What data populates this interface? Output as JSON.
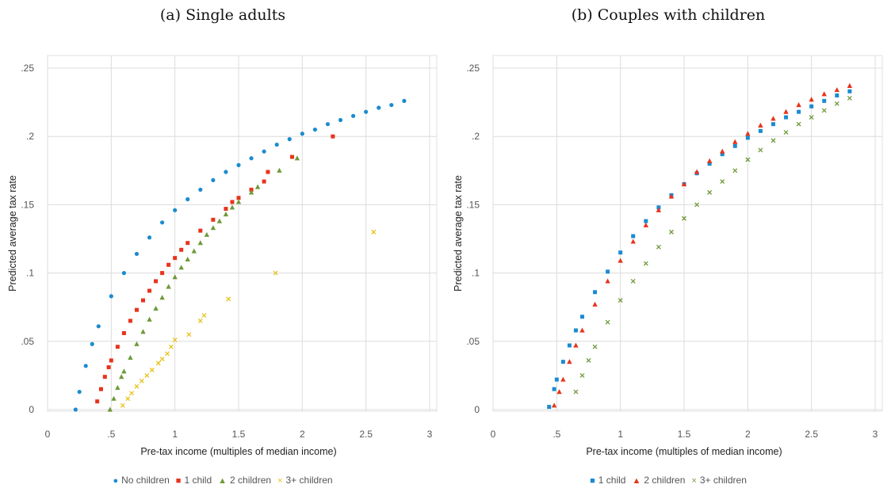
{
  "chart_data": [
    {
      "type": "scatter",
      "title": "(a) Single adults",
      "xlabel": "Pre-tax income (multiples of median income)",
      "ylabel": "Predicted average tax rate",
      "xlim": [
        0,
        3
      ],
      "ylim": [
        0,
        0.25
      ],
      "x_ticks": [
        "0",
        ".5",
        "1",
        "1.5",
        "2",
        "2.5",
        "3"
      ],
      "y_ticks": [
        "0",
        ".05",
        ".1",
        ".15",
        ".2",
        ".25"
      ],
      "grid": true,
      "legend_position": "bottom",
      "series": [
        {
          "name": "No children",
          "color": "#1b8bd0",
          "marker": "circle",
          "x": [
            0.22,
            0.25,
            0.3,
            0.35,
            0.4,
            0.5,
            0.6,
            0.7,
            0.8,
            0.9,
            1.0,
            1.1,
            1.2,
            1.3,
            1.4,
            1.5,
            1.6,
            1.7,
            1.8,
            1.9,
            2.0,
            2.1,
            2.2,
            2.3,
            2.4,
            2.5,
            2.6,
            2.7,
            2.8
          ],
          "y": [
            0.0,
            0.013,
            0.032,
            0.048,
            0.061,
            0.083,
            0.1,
            0.114,
            0.126,
            0.137,
            0.146,
            0.154,
            0.161,
            0.168,
            0.174,
            0.179,
            0.184,
            0.189,
            0.194,
            0.198,
            0.202,
            0.205,
            0.209,
            0.212,
            0.215,
            0.218,
            0.221,
            0.223,
            0.226
          ]
        },
        {
          "name": "1 child",
          "color": "#e8331c",
          "marker": "square",
          "x": [
            0.39,
            0.42,
            0.45,
            0.48,
            0.5,
            0.55,
            0.6,
            0.65,
            0.7,
            0.75,
            0.8,
            0.85,
            0.9,
            0.95,
            1.0,
            1.05,
            1.1,
            1.2,
            1.3,
            1.4,
            1.45,
            1.5,
            1.6,
            1.7,
            1.73,
            1.92,
            2.24
          ],
          "y": [
            0.006,
            0.015,
            0.024,
            0.031,
            0.036,
            0.046,
            0.056,
            0.065,
            0.073,
            0.08,
            0.087,
            0.094,
            0.1,
            0.106,
            0.111,
            0.117,
            0.122,
            0.131,
            0.139,
            0.147,
            0.152,
            0.155,
            0.161,
            0.167,
            0.174,
            0.185,
            0.2
          ]
        },
        {
          "name": "2 children",
          "color": "#6e9a3a",
          "marker": "triangle",
          "x": [
            0.49,
            0.52,
            0.55,
            0.58,
            0.6,
            0.65,
            0.7,
            0.75,
            0.8,
            0.85,
            0.9,
            0.95,
            1.0,
            1.05,
            1.1,
            1.15,
            1.2,
            1.25,
            1.3,
            1.35,
            1.4,
            1.45,
            1.5,
            1.6,
            1.65,
            1.82,
            1.96
          ],
          "y": [
            0.0,
            0.008,
            0.016,
            0.024,
            0.028,
            0.038,
            0.048,
            0.057,
            0.066,
            0.074,
            0.082,
            0.09,
            0.097,
            0.104,
            0.11,
            0.116,
            0.122,
            0.128,
            0.133,
            0.138,
            0.143,
            0.148,
            0.152,
            0.159,
            0.163,
            0.175,
            0.184
          ]
        },
        {
          "name": "3+ children",
          "color": "#e8c11a",
          "marker": "x",
          "x": [
            0.59,
            0.63,
            0.66,
            0.7,
            0.74,
            0.78,
            0.82,
            0.87,
            0.9,
            0.94,
            0.97,
            1.0,
            1.11,
            1.2,
            1.23,
            1.42,
            1.79,
            2.56
          ],
          "y": [
            0.003,
            0.008,
            0.012,
            0.017,
            0.021,
            0.025,
            0.029,
            0.034,
            0.037,
            0.041,
            0.046,
            0.051,
            0.055,
            0.065,
            0.069,
            0.081,
            0.1,
            0.13
          ]
        }
      ]
    },
    {
      "type": "scatter",
      "title": "(b) Couples with children",
      "xlabel": "Pre-tax income (multiples of median income)",
      "ylabel": "Predicted average tax rate",
      "xlim": [
        0,
        3
      ],
      "ylim": [
        0,
        0.25
      ],
      "x_ticks": [
        "0",
        ".5",
        "1",
        "1.5",
        "2",
        "2.5",
        "3"
      ],
      "y_ticks": [
        "0",
        ".05",
        ".1",
        ".15",
        ".2",
        ".25"
      ],
      "grid": true,
      "legend_position": "bottom",
      "series": [
        {
          "name": "1 child",
          "color": "#1b8bd0",
          "marker": "square",
          "x": [
            0.44,
            0.48,
            0.5,
            0.55,
            0.6,
            0.65,
            0.7,
            0.8,
            0.9,
            1.0,
            1.1,
            1.2,
            1.3,
            1.4,
            1.5,
            1.6,
            1.7,
            1.8,
            1.9,
            2.0,
            2.1,
            2.2,
            2.3,
            2.4,
            2.5,
            2.6,
            2.7,
            2.8
          ],
          "y": [
            0.002,
            0.015,
            0.022,
            0.035,
            0.047,
            0.058,
            0.068,
            0.086,
            0.101,
            0.115,
            0.127,
            0.138,
            0.148,
            0.157,
            0.165,
            0.173,
            0.18,
            0.187,
            0.193,
            0.199,
            0.204,
            0.209,
            0.214,
            0.218,
            0.222,
            0.226,
            0.23,
            0.233
          ]
        },
        {
          "name": "2 children",
          "color": "#e8331c",
          "marker": "triangle",
          "x": [
            0.48,
            0.52,
            0.55,
            0.6,
            0.65,
            0.7,
            0.8,
            0.9,
            1.0,
            1.1,
            1.2,
            1.3,
            1.4,
            1.5,
            1.6,
            1.7,
            1.8,
            1.9,
            2.0,
            2.1,
            2.2,
            2.3,
            2.4,
            2.5,
            2.6,
            2.7,
            2.8
          ],
          "y": [
            0.003,
            0.013,
            0.022,
            0.035,
            0.047,
            0.058,
            0.077,
            0.094,
            0.109,
            0.123,
            0.135,
            0.146,
            0.156,
            0.165,
            0.174,
            0.182,
            0.189,
            0.196,
            0.202,
            0.208,
            0.213,
            0.218,
            0.223,
            0.227,
            0.231,
            0.234,
            0.237
          ]
        },
        {
          "name": "3+ children",
          "color": "#6e9a3a",
          "marker": "x",
          "x": [
            0.65,
            0.7,
            0.75,
            0.8,
            0.9,
            1.0,
            1.1,
            1.2,
            1.3,
            1.4,
            1.5,
            1.6,
            1.7,
            1.8,
            1.9,
            2.0,
            2.1,
            2.2,
            2.3,
            2.4,
            2.5,
            2.6,
            2.7,
            2.8
          ],
          "y": [
            0.013,
            0.025,
            0.036,
            0.046,
            0.064,
            0.08,
            0.094,
            0.107,
            0.119,
            0.13,
            0.14,
            0.15,
            0.159,
            0.167,
            0.175,
            0.183,
            0.19,
            0.197,
            0.203,
            0.209,
            0.214,
            0.219,
            0.224,
            0.228
          ]
        }
      ]
    }
  ]
}
